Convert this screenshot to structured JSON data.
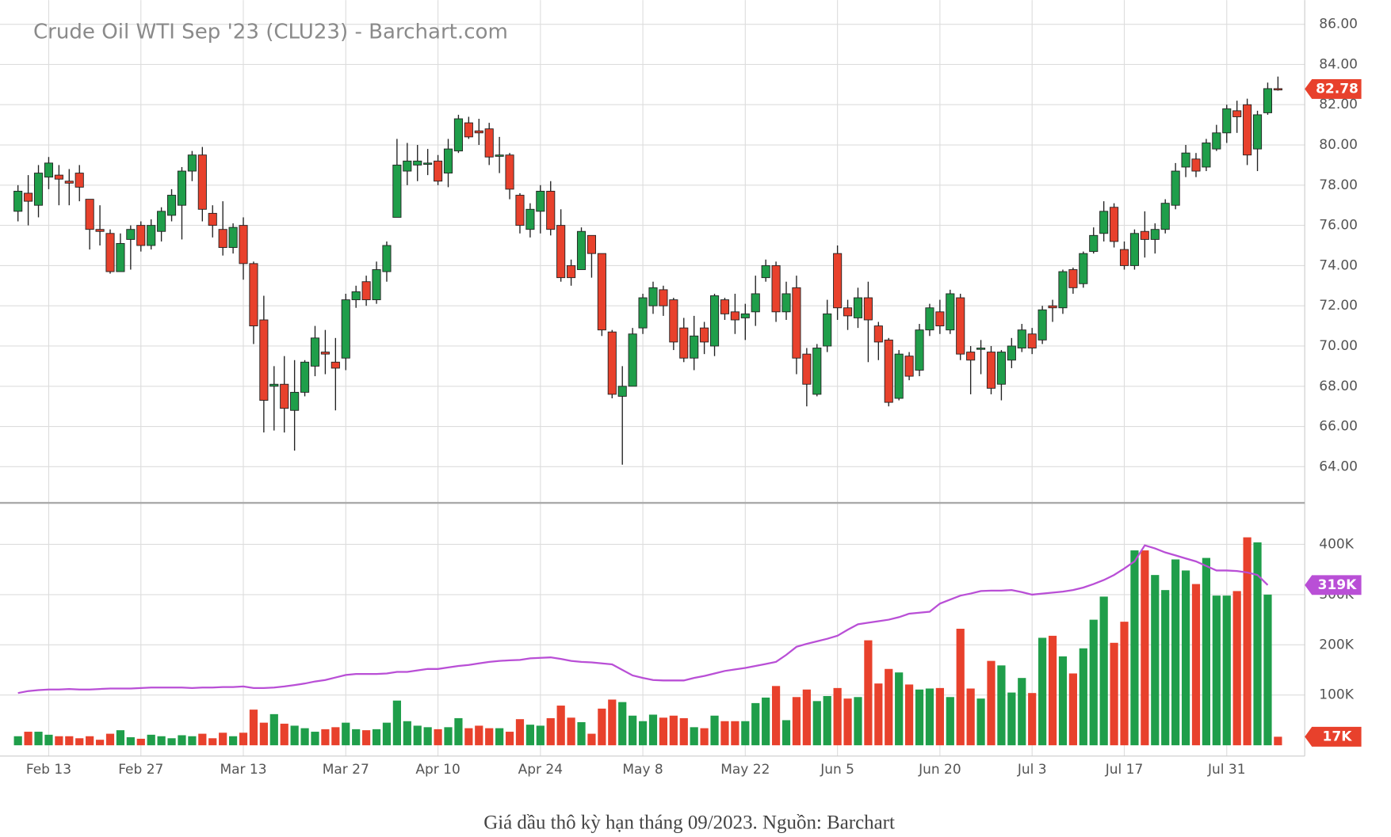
{
  "chart_data": {
    "type": "candlestick",
    "title": "Crude Oil WTI Sep '23 (CLU23) - Barchart.com",
    "categories": [
      null,
      null,
      null,
      "Feb 13",
      null,
      null,
      null,
      null,
      null,
      null,
      null,
      null,
      "Feb 27",
      null,
      null,
      null,
      null,
      null,
      null,
      null,
      null,
      null,
      "Mar 13",
      null,
      null,
      null,
      null,
      null,
      null,
      null,
      null,
      null,
      "Mar 27",
      null,
      null,
      null,
      null,
      null,
      null,
      null,
      null,
      "Apr 10",
      null,
      null,
      null,
      null,
      null,
      null,
      null,
      null,
      null,
      "Apr 24",
      null,
      null,
      null,
      null,
      null,
      null,
      null,
      null,
      null,
      "May 8",
      null,
      null,
      null,
      null,
      null,
      null,
      null,
      null,
      null,
      "May 22",
      null,
      null,
      null,
      null,
      null,
      null,
      null,
      null,
      "Jun 5",
      null,
      null,
      null,
      null,
      null,
      null,
      null,
      null,
      null,
      "Jun 20",
      null,
      null,
      null,
      null,
      null,
      null,
      null,
      null,
      "Jul 3",
      null,
      null,
      null,
      null,
      null,
      null,
      null,
      null,
      "Jul 17",
      null,
      null,
      null,
      null,
      null,
      null,
      null,
      null,
      null,
      "Jul 31",
      null,
      null,
      null,
      null,
      null
    ],
    "open": [
      76.7,
      77.6,
      77.0,
      78.4,
      78.5,
      78.2,
      78.6,
      77.3,
      75.8,
      75.6,
      73.7,
      75.3,
      76.0,
      75.0,
      75.7,
      76.5,
      77.0,
      78.7,
      79.5,
      76.6,
      75.8,
      74.9,
      76.0,
      74.1,
      71.3,
      68.0,
      68.1,
      66.8,
      67.7,
      69.0,
      69.7,
      69.2,
      69.4,
      72.3,
      73.2,
      72.3,
      73.7,
      76.4,
      78.7,
      79.0,
      79.1,
      79.2,
      78.6,
      79.7,
      81.1,
      80.7,
      80.8,
      79.5,
      79.5,
      77.5,
      75.8,
      76.7,
      77.7,
      76.0,
      74.0,
      73.8,
      75.5,
      74.6,
      70.7,
      67.5,
      68.0,
      70.9,
      72.0,
      72.8,
      72.3,
      70.9,
      69.4,
      70.9,
      70.0,
      72.3,
      71.7,
      71.4,
      71.7,
      73.4,
      74.0,
      71.7,
      72.9,
      69.6,
      67.6,
      70.0,
      74.6,
      71.9,
      71.4,
      72.4,
      71.0,
      70.3,
      67.4,
      69.5,
      68.8,
      70.8,
      71.7,
      70.8,
      72.4,
      69.7,
      69.9,
      69.7,
      68.1,
      69.3,
      69.9,
      70.6,
      70.3,
      72.0,
      71.9,
      73.8,
      73.1,
      74.7,
      75.6,
      76.9,
      74.8,
      74.0,
      75.7,
      75.3,
      75.8,
      77.0,
      78.9,
      79.3,
      78.9,
      79.8,
      80.6,
      81.7,
      82.0,
      79.8,
      81.6,
      82.8
    ],
    "high": [
      78.0,
      78.5,
      79.0,
      79.4,
      79.0,
      78.8,
      79.0,
      77.3,
      77.0,
      75.8,
      75.6,
      76.0,
      76.2,
      76.3,
      76.9,
      77.8,
      78.9,
      79.7,
      79.9,
      77.0,
      77.2,
      76.1,
      76.4,
      74.2,
      72.5,
      69.0,
      69.5,
      69.3,
      69.3,
      71.0,
      70.8,
      70.4,
      72.6,
      73.0,
      73.5,
      74.2,
      75.2,
      80.3,
      80.1,
      80.0,
      79.8,
      79.5,
      80.3,
      81.5,
      81.4,
      81.3,
      81.1,
      80.4,
      79.6,
      77.6,
      77.1,
      78.0,
      78.2,
      76.8,
      74.3,
      75.9,
      75.5,
      74.6,
      70.8,
      69.0,
      70.9,
      72.6,
      73.2,
      73.0,
      72.4,
      71.4,
      71.5,
      71.2,
      72.6,
      72.4,
      72.6,
      72.1,
      73.5,
      74.3,
      74.2,
      73.2,
      73.5,
      69.9,
      70.1,
      72.3,
      75.0,
      72.3,
      72.9,
      73.2,
      71.2,
      70.4,
      69.8,
      69.7,
      71.1,
      72.1,
      72.3,
      72.8,
      72.6,
      70.0,
      70.3,
      70.0,
      69.8,
      70.4,
      71.1,
      70.9,
      72.0,
      72.3,
      73.8,
      73.9,
      74.7,
      75.9,
      77.2,
      77.1,
      75.2,
      75.8,
      76.7,
      76.1,
      77.3,
      79.1,
      80.0,
      79.6,
      80.3,
      81.0,
      82.0,
      82.2,
      82.3,
      81.7,
      83.1,
      83.4
    ],
    "low": [
      76.2,
      76.0,
      76.4,
      77.8,
      77.0,
      77.0,
      77.2,
      74.8,
      75.0,
      73.6,
      73.7,
      73.8,
      74.7,
      74.8,
      75.2,
      76.2,
      75.3,
      78.2,
      76.2,
      75.4,
      74.5,
      74.6,
      73.3,
      70.1,
      65.7,
      65.8,
      65.7,
      64.8,
      67.5,
      68.5,
      68.6,
      66.8,
      68.8,
      71.9,
      72.0,
      72.1,
      73.2,
      76.4,
      78.0,
      78.2,
      78.5,
      78.0,
      77.9,
      79.6,
      80.3,
      80.0,
      79.0,
      78.6,
      77.3,
      75.6,
      75.4,
      75.6,
      75.5,
      73.2,
      73.0,
      73.8,
      73.4,
      70.5,
      67.4,
      64.1,
      68.0,
      70.6,
      71.6,
      71.5,
      69.8,
      69.2,
      68.8,
      69.6,
      69.5,
      71.3,
      70.6,
      70.3,
      71.0,
      73.2,
      71.2,
      71.3,
      68.6,
      67.0,
      67.5,
      69.7,
      71.3,
      70.8,
      70.9,
      69.2,
      69.3,
      67.0,
      67.3,
      68.3,
      68.5,
      70.5,
      70.6,
      70.6,
      69.3,
      67.6,
      68.6,
      67.6,
      67.3,
      68.9,
      69.7,
      69.6,
      70.1,
      71.2,
      71.6,
      72.6,
      72.9,
      74.6,
      75.2,
      74.9,
      73.8,
      73.8,
      74.4,
      74.6,
      75.6,
      76.8,
      78.4,
      78.4,
      78.7,
      79.7,
      80.1,
      80.6,
      79.0,
      78.7,
      81.5,
      82.7
    ],
    "close": [
      77.7,
      77.2,
      78.6,
      79.1,
      78.3,
      78.1,
      77.9,
      75.8,
      75.7,
      73.7,
      75.1,
      75.8,
      75.0,
      76.0,
      76.7,
      77.5,
      78.7,
      79.5,
      76.8,
      76.0,
      74.9,
      75.9,
      74.1,
      71.0,
      67.3,
      68.1,
      66.9,
      67.7,
      69.2,
      70.4,
      69.6,
      68.9,
      72.3,
      72.7,
      72.3,
      73.8,
      75.0,
      79.0,
      79.2,
      79.2,
      79.1,
      78.2,
      79.8,
      81.3,
      80.4,
      80.6,
      79.4,
      79.5,
      77.8,
      76.0,
      76.8,
      77.7,
      75.8,
      73.4,
      73.4,
      75.7,
      74.6,
      70.8,
      67.6,
      68.0,
      70.6,
      72.4,
      72.9,
      72.0,
      70.2,
      69.4,
      70.5,
      70.2,
      72.5,
      71.6,
      71.3,
      71.6,
      72.6,
      74.0,
      71.7,
      72.6,
      69.4,
      68.1,
      69.9,
      71.6,
      71.9,
      71.5,
      72.4,
      71.3,
      70.2,
      67.2,
      69.6,
      68.5,
      70.8,
      71.9,
      71.0,
      72.6,
      69.6,
      69.3,
      69.9,
      67.9,
      69.7,
      70.0,
      70.8,
      69.9,
      71.8,
      71.9,
      73.7,
      72.9,
      74.6,
      75.5,
      76.7,
      75.2,
      74.0,
      75.6,
      75.3,
      75.8,
      77.1,
      78.7,
      79.6,
      78.7,
      80.1,
      80.6,
      81.8,
      81.4,
      79.5,
      81.5,
      82.8,
      82.78
    ],
    "last_label": "82.78",
    "ylim": [
      62.2,
      87.2
    ],
    "yticks": [
      {
        "value": 64,
        "label": "64.00"
      },
      {
        "value": 66,
        "label": "66.00"
      },
      {
        "value": 68,
        "label": "68.00"
      },
      {
        "value": 70,
        "label": "70.00"
      },
      {
        "value": 72,
        "label": "72.00"
      },
      {
        "value": 74,
        "label": "74.00"
      },
      {
        "value": 76,
        "label": "76.00"
      },
      {
        "value": 78,
        "label": "78.00"
      },
      {
        "value": 80,
        "label": "80.00"
      },
      {
        "value": 82,
        "label": "82.00"
      },
      {
        "value": 84,
        "label": "84.00"
      },
      {
        "value": 86,
        "label": "86.00"
      }
    ],
    "grid": true,
    "up_color": "#1f9e4a",
    "down_color": "#e8412c",
    "volume": {
      "values": [
        18000,
        27000,
        27000,
        21000,
        18000,
        18000,
        14000,
        18000,
        11000,
        23000,
        30000,
        16000,
        13000,
        21000,
        18000,
        14000,
        20000,
        18000,
        23000,
        14000,
        25000,
        18000,
        25000,
        71000,
        45000,
        62000,
        43000,
        39000,
        34000,
        27000,
        32000,
        36000,
        45000,
        32000,
        30000,
        32000,
        45000,
        89000,
        48000,
        39000,
        36000,
        32000,
        36000,
        54000,
        34000,
        39000,
        34000,
        34000,
        27000,
        52000,
        41000,
        39000,
        54000,
        79000,
        55000,
        46000,
        23000,
        73000,
        91000,
        86000,
        59000,
        48000,
        61000,
        55000,
        59000,
        54000,
        36000,
        34000,
        59000,
        48000,
        48000,
        48000,
        84000,
        95000,
        118000,
        50000,
        96000,
        111000,
        88000,
        98000,
        114000,
        93000,
        96000,
        209000,
        123000,
        152000,
        145000,
        121000,
        111000,
        113000,
        114000,
        96000,
        232000,
        113000,
        93000,
        168000,
        159000,
        105000,
        134000,
        104000,
        214000,
        218000,
        177000,
        143000,
        193000,
        250000,
        296000,
        204000,
        246000,
        388000,
        388000,
        339000,
        309000,
        370000,
        348000,
        321000,
        373000,
        298000,
        298000,
        307000,
        414000,
        404000,
        300000,
        17000
      ],
      "last_label": "17K",
      "ylim": [
        0,
        479000
      ],
      "yticks": [
        {
          "value": 100000,
          "label": "100K"
        },
        {
          "value": 200000,
          "label": "200K"
        },
        {
          "value": 300000,
          "label": "300K"
        },
        {
          "value": 400000,
          "label": "400K"
        }
      ],
      "average": {
        "color": "#b94fd6",
        "values": [
          104000,
          108000,
          110000,
          111000,
          111000,
          112000,
          111000,
          111000,
          112000,
          113000,
          113000,
          113000,
          114000,
          115000,
          115000,
          115000,
          115000,
          114000,
          115000,
          115000,
          116000,
          116000,
          117000,
          114000,
          114000,
          115000,
          117000,
          120000,
          123000,
          127000,
          130000,
          135000,
          140000,
          142000,
          142000,
          142000,
          143000,
          146000,
          146000,
          149000,
          152000,
          152000,
          155000,
          158000,
          160000,
          163000,
          166000,
          168000,
          169000,
          170000,
          173000,
          174000,
          175000,
          172000,
          168000,
          166000,
          165000,
          163000,
          161000,
          150000,
          139000,
          134000,
          130000,
          129000,
          129000,
          129000,
          134000,
          138000,
          143000,
          148000,
          151000,
          154000,
          158000,
          162000,
          166000,
          180000,
          196000,
          202000,
          207000,
          212000,
          218000,
          230000,
          241000,
          244000,
          247000,
          250000,
          255000,
          262000,
          264000,
          266000,
          282000,
          290000,
          298000,
          302000,
          307000,
          308000,
          308000,
          309000,
          305000,
          300000,
          302000,
          304000,
          306000,
          309000,
          314000,
          321000,
          329000,
          339000,
          352000,
          366000,
          398000,
          392000,
          384000,
          378000,
          372000,
          366000,
          357000,
          348000,
          348000,
          347000,
          344000,
          339000,
          319000,
          null
        ],
        "last_label": "319K"
      }
    }
  },
  "caption": "Giá dầu thô kỳ hạn tháng 09/2023. Nguồn: Barchart"
}
